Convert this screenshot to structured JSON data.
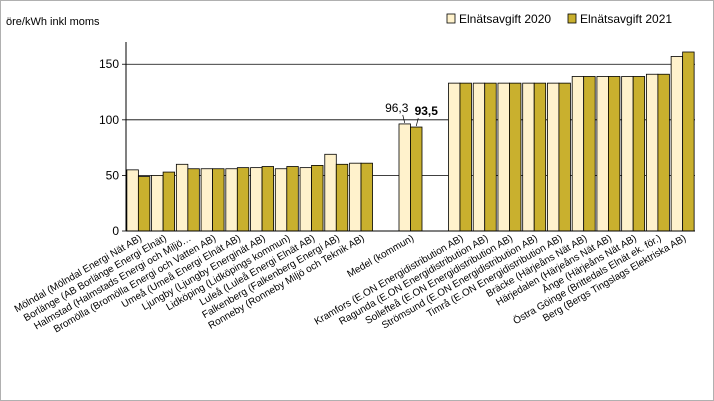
{
  "chart_data": {
    "type": "bar",
    "ylabel": "öre/kWh inkl moms",
    "ylim": [
      0,
      170
    ],
    "yticks": [
      0,
      50,
      100,
      150
    ],
    "grid": true,
    "legend_position": "top-right",
    "colors": {
      "2020": "#FFF2CC",
      "2021": "#C9B02E",
      "outline": "#000000"
    },
    "categories": [
      "Mölndal (Mölndal Energi Nät AB)",
      "Borlänge (AB Borlänge Energi Elnät)",
      "Halmstad (Halmstads Energi och Miljö…",
      "Bromölla (Bromölla Energi och Vatten AB)",
      "Umeå (Umeå Energi Elnät AB)",
      "Ljungby (Ljungby Energinät AB)",
      "Lidköping (Lidköpings kommun)",
      "Luleå (Luleå Energi Elnät AB)",
      "Falkenberg (Falkenberg Energi AB)",
      "Ronneby (Ronneby Miljö och Teknik AB)",
      "",
      "Medel (kommun)",
      "",
      "Kramfors (E.ON Energidistribution AB)",
      "Ragunda (E.ON Energidistribution AB)",
      "Sollefteå (E.ON Energidistribution AB)",
      "Strömsund (E.ON Energidistribution AB)",
      "Timrå (E.ON Energidistribution AB)",
      "Bräcke (Härjeåns Nät AB)",
      "Härjedalen (Härjeåns Nät AB)",
      "Ånge (Härjeåns Nät AB)",
      "Östra Göinge (Brittedals Elnät ek. för.)",
      "Berg (Bergs Tingslags Elektriska AB)"
    ],
    "series": [
      {
        "name": "Elnätsavgift 2020",
        "values": [
          55,
          50,
          60,
          56,
          56,
          57,
          56,
          57,
          69,
          61,
          null,
          96.3,
          null,
          133,
          133,
          133,
          133,
          133,
          139,
          139,
          139,
          141,
          157
        ]
      },
      {
        "name": "Elnätsavgift 2021",
        "values": [
          49,
          53,
          56,
          56,
          57,
          58,
          58,
          59,
          60,
          61,
          null,
          93.5,
          null,
          133,
          133,
          133,
          133,
          133,
          139,
          139,
          139,
          141,
          161
        ]
      }
    ],
    "annotations": [
      {
        "category": "Medel (kommun)",
        "series": "Elnätsavgift 2020",
        "text": "96,3",
        "bold": false
      },
      {
        "category": "Medel (kommun)",
        "series": "Elnätsavgift 2021",
        "text": "93,5",
        "bold": true
      }
    ]
  }
}
